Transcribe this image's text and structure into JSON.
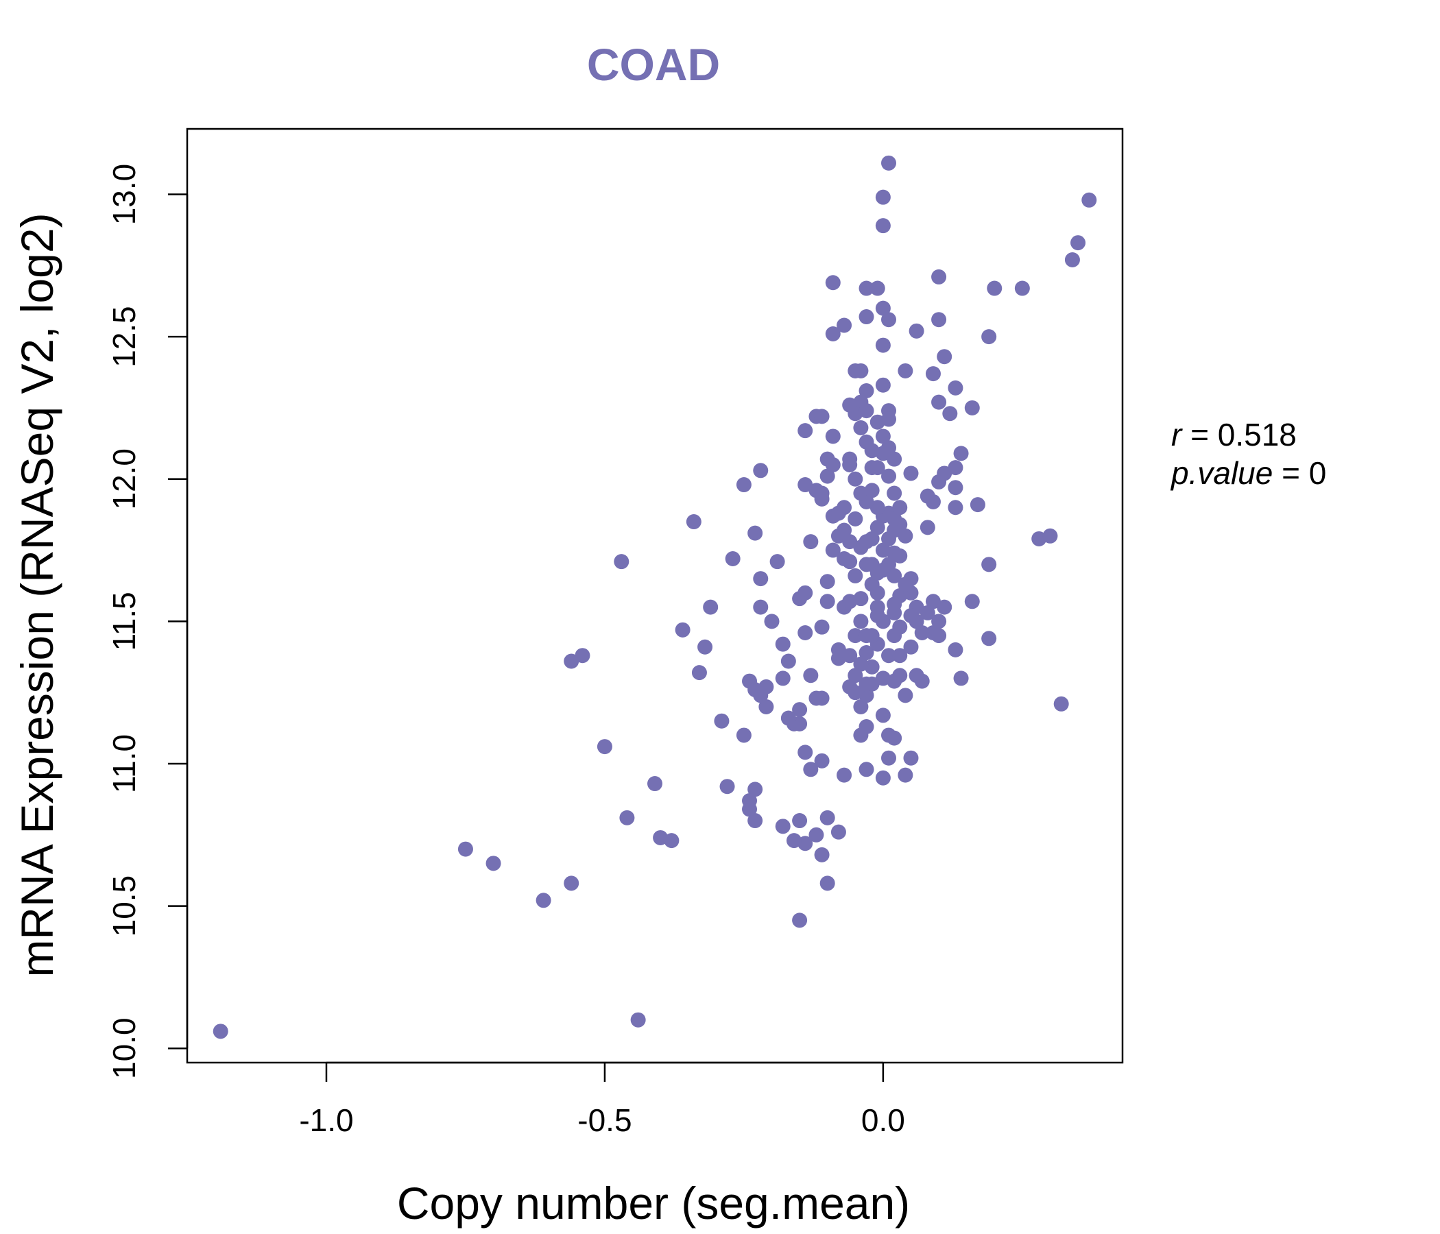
{
  "chart_data": {
    "type": "scatter",
    "title": "COAD",
    "xlabel": "Copy number (seg.mean)",
    "ylabel": "mRNA Expression (RNASeq V2, log2)",
    "xlim": [
      -1.25,
      0.43
    ],
    "ylim": [
      9.95,
      13.23
    ],
    "xticks": [
      -1.0,
      -0.5,
      0.0
    ],
    "xtick_labels": [
      "-1.0",
      "-0.5",
      "0.0"
    ],
    "yticks": [
      10.0,
      10.5,
      11.0,
      11.5,
      12.0,
      12.5,
      13.0
    ],
    "ytick_labels": [
      "10.0",
      "10.5",
      "11.0",
      "11.5",
      "12.0",
      "12.5",
      "13.0"
    ],
    "point_color": "#7570b3",
    "annotations": {
      "r_label": "r",
      "r_value": "0.518",
      "p_label": "p.value",
      "p_value": "0"
    },
    "points": [
      [
        -1.19,
        10.06
      ],
      [
        -0.44,
        10.1
      ],
      [
        -0.75,
        10.7
      ],
      [
        -0.7,
        10.65
      ],
      [
        -0.61,
        10.52
      ],
      [
        -0.56,
        10.58
      ],
      [
        -0.46,
        10.81
      ],
      [
        -0.41,
        10.93
      ],
      [
        -0.4,
        10.74
      ],
      [
        -0.38,
        10.73
      ],
      [
        -0.5,
        11.06
      ],
      [
        -0.56,
        11.36
      ],
      [
        -0.54,
        11.38
      ],
      [
        -0.47,
        11.71
      ],
      [
        -0.34,
        11.85
      ],
      [
        -0.36,
        11.47
      ],
      [
        -0.33,
        11.32
      ],
      [
        -0.32,
        11.41
      ],
      [
        -0.31,
        11.55
      ],
      [
        -0.29,
        11.15
      ],
      [
        -0.28,
        10.92
      ],
      [
        -0.27,
        11.72
      ],
      [
        -0.25,
        11.1
      ],
      [
        -0.25,
        11.98
      ],
      [
        -0.22,
        12.03
      ],
      [
        -0.23,
        11.81
      ],
      [
        -0.22,
        11.65
      ],
      [
        -0.22,
        11.55
      ],
      [
        -0.24,
        11.29
      ],
      [
        -0.23,
        11.26
      ],
      [
        -0.21,
        11.27
      ],
      [
        -0.22,
        11.24
      ],
      [
        -0.21,
        11.2
      ],
      [
        -0.2,
        11.5
      ],
      [
        -0.19,
        11.71
      ],
      [
        -0.18,
        11.42
      ],
      [
        -0.18,
        11.3
      ],
      [
        -0.17,
        11.36
      ],
      [
        -0.16,
        11.14
      ],
      [
        -0.15,
        11.19
      ],
      [
        -0.14,
        11.04
      ],
      [
        -0.15,
        11.58
      ],
      [
        -0.14,
        11.46
      ],
      [
        -0.14,
        11.6
      ],
      [
        -0.13,
        11.31
      ],
      [
        -0.13,
        11.78
      ],
      [
        -0.14,
        11.98
      ],
      [
        -0.14,
        12.17
      ],
      [
        -0.12,
        12.22
      ],
      [
        -0.11,
        12.22
      ],
      [
        -0.12,
        11.96
      ],
      [
        -0.11,
        11.93
      ],
      [
        -0.1,
        12.01
      ],
      [
        -0.1,
        12.07
      ],
      [
        -0.09,
        12.15
      ],
      [
        -0.09,
        11.87
      ],
      [
        -0.1,
        11.64
      ],
      [
        -0.1,
        11.57
      ],
      [
        -0.11,
        11.48
      ],
      [
        -0.08,
        11.4
      ],
      [
        -0.08,
        11.37
      ],
      [
        -0.07,
        11.55
      ],
      [
        -0.07,
        11.72
      ],
      [
        -0.07,
        11.82
      ],
      [
        -0.06,
        12.07
      ],
      [
        -0.09,
        12.51
      ],
      [
        -0.09,
        12.69
      ],
      [
        -0.07,
        12.54
      ],
      [
        -0.05,
        12.23
      ],
      [
        -0.05,
        12.38
      ],
      [
        -0.04,
        12.38
      ],
      [
        -0.04,
        12.27
      ],
      [
        -0.04,
        12.18
      ],
      [
        -0.03,
        12.31
      ],
      [
        -0.03,
        12.13
      ],
      [
        -0.02,
        12.04
      ],
      [
        -0.03,
        12.57
      ],
      [
        -0.03,
        12.67
      ],
      [
        -0.01,
        12.67
      ],
      [
        0.0,
        12.6
      ],
      [
        0.01,
        12.56
      ],
      [
        0.0,
        12.47
      ],
      [
        0.0,
        12.33
      ],
      [
        0.01,
        12.24
      ],
      [
        0.01,
        12.11
      ],
      [
        0.02,
        12.07
      ],
      [
        0.01,
        12.01
      ],
      [
        0.02,
        11.95
      ],
      [
        0.01,
        11.88
      ],
      [
        0.02,
        11.82
      ],
      [
        0.03,
        11.84
      ],
      [
        0.04,
        11.8
      ],
      [
        0.02,
        11.74
      ],
      [
        0.01,
        11.7
      ],
      [
        0.02,
        11.66
      ],
      [
        0.03,
        11.59
      ],
      [
        0.02,
        11.53
      ],
      [
        0.03,
        11.48
      ],
      [
        0.02,
        11.45
      ],
      [
        0.01,
        11.38
      ],
      [
        0.03,
        11.31
      ],
      [
        0.02,
        11.29
      ],
      [
        0.04,
        11.24
      ],
      [
        0.0,
        11.17
      ],
      [
        0.01,
        11.1
      ],
      [
        0.02,
        11.09
      ],
      [
        0.01,
        11.02
      ],
      [
        0.0,
        10.95
      ],
      [
        0.05,
        11.02
      ],
      [
        0.04,
        10.96
      ],
      [
        -0.03,
        10.98
      ],
      [
        -0.07,
        10.96
      ],
      [
        -0.03,
        11.13
      ],
      [
        -0.04,
        11.1
      ],
      [
        -0.04,
        11.2
      ],
      [
        -0.03,
        11.24
      ],
      [
        -0.06,
        11.27
      ],
      [
        -0.05,
        11.25
      ],
      [
        -0.02,
        11.28
      ],
      [
        -0.02,
        11.34
      ],
      [
        -0.03,
        11.39
      ],
      [
        -0.01,
        11.42
      ],
      [
        -0.02,
        11.45
      ],
      [
        0.0,
        11.5
      ],
      [
        -0.01,
        11.55
      ],
      [
        -0.01,
        11.6
      ],
      [
        -0.02,
        11.63
      ],
      [
        -0.01,
        11.67
      ],
      [
        -0.03,
        11.7
      ],
      [
        -0.04,
        11.76
      ],
      [
        -0.02,
        11.79
      ],
      [
        -0.01,
        11.83
      ],
      [
        0.0,
        11.87
      ],
      [
        -0.01,
        11.9
      ],
      [
        -0.03,
        11.92
      ],
      [
        -0.04,
        11.95
      ],
      [
        -0.05,
        12.0
      ],
      [
        -0.07,
        11.9
      ],
      [
        -0.08,
        11.8
      ],
      [
        -0.06,
        11.71
      ],
      [
        -0.09,
        11.75
      ],
      [
        0.05,
        11.65
      ],
      [
        0.05,
        11.6
      ],
      [
        0.06,
        11.55
      ],
      [
        0.05,
        11.52
      ],
      [
        0.06,
        11.5
      ],
      [
        0.05,
        11.41
      ],
      [
        0.09,
        11.46
      ],
      [
        0.1,
        11.5
      ],
      [
        0.1,
        11.45
      ],
      [
        0.13,
        11.4
      ],
      [
        0.14,
        11.3
      ],
      [
        0.09,
        11.57
      ],
      [
        0.11,
        11.55
      ],
      [
        0.16,
        11.57
      ],
      [
        0.08,
        11.83
      ],
      [
        0.09,
        11.92
      ],
      [
        0.1,
        11.99
      ],
      [
        0.11,
        12.02
      ],
      [
        0.13,
        12.04
      ],
      [
        0.13,
        11.97
      ],
      [
        0.13,
        11.9
      ],
      [
        0.09,
        12.37
      ],
      [
        0.1,
        12.27
      ],
      [
        0.12,
        12.23
      ],
      [
        0.13,
        12.32
      ],
      [
        0.11,
        12.43
      ],
      [
        0.1,
        12.56
      ],
      [
        0.1,
        12.71
      ],
      [
        0.06,
        12.52
      ],
      [
        0.04,
        12.38
      ],
      [
        0.05,
        12.02
      ],
      [
        0.08,
        11.94
      ],
      [
        0.14,
        12.09
      ],
      [
        0.16,
        12.25
      ],
      [
        0.17,
        11.91
      ],
      [
        0.19,
        12.5
      ],
      [
        0.2,
        12.67
      ],
      [
        0.25,
        12.67
      ],
      [
        0.19,
        11.7
      ],
      [
        0.19,
        11.44
      ],
      [
        0.28,
        11.79
      ],
      [
        0.3,
        11.8
      ],
      [
        0.32,
        11.21
      ],
      [
        0.34,
        12.77
      ],
      [
        0.35,
        12.83
      ],
      [
        0.37,
        12.98
      ],
      [
        0.0,
        12.89
      ],
      [
        0.0,
        12.99
      ],
      [
        0.01,
        13.11
      ],
      [
        -0.11,
        11.23
      ],
      [
        -0.11,
        11.01
      ],
      [
        -0.13,
        10.98
      ],
      [
        -0.12,
        10.75
      ],
      [
        -0.11,
        10.68
      ],
      [
        -0.1,
        10.58
      ],
      [
        -0.14,
        10.72
      ],
      [
        -0.16,
        10.73
      ],
      [
        -0.18,
        10.78
      ],
      [
        -0.15,
        10.8
      ],
      [
        -0.1,
        10.81
      ],
      [
        -0.08,
        10.76
      ],
      [
        -0.15,
        10.45
      ],
      [
        -0.24,
        10.84
      ],
      [
        -0.23,
        10.8
      ],
      [
        -0.23,
        10.91
      ],
      [
        -0.24,
        10.87
      ],
      [
        -0.12,
        11.23
      ],
      [
        -0.15,
        11.14
      ],
      [
        -0.17,
        11.16
      ],
      [
        0.07,
        11.29
      ],
      [
        0.06,
        11.31
      ],
      [
        0.03,
        11.38
      ],
      [
        0.08,
        11.53
      ],
      [
        0.07,
        11.46
      ],
      [
        -0.01,
        11.52
      ],
      [
        0.02,
        11.56
      ],
      [
        0.04,
        11.63
      ],
      [
        0.0,
        11.68
      ],
      [
        0.03,
        11.73
      ],
      [
        0.0,
        11.75
      ],
      [
        0.01,
        11.79
      ],
      [
        0.02,
        11.86
      ],
      [
        0.03,
        11.9
      ],
      [
        -0.02,
        11.96
      ],
      [
        -0.01,
        12.04
      ],
      [
        0.0,
        12.09
      ],
      [
        -0.02,
        12.1
      ],
      [
        0.0,
        12.15
      ],
      [
        -0.01,
        12.2
      ],
      [
        0.01,
        12.21
      ],
      [
        -0.03,
        12.24
      ],
      [
        -0.06,
        12.26
      ],
      [
        -0.06,
        12.05
      ],
      [
        -0.09,
        12.05
      ],
      [
        -0.11,
        11.95
      ],
      [
        -0.08,
        11.88
      ],
      [
        -0.05,
        11.86
      ],
      [
        -0.06,
        11.78
      ],
      [
        -0.03,
        11.78
      ],
      [
        -0.02,
        11.7
      ],
      [
        -0.05,
        11.66
      ],
      [
        -0.04,
        11.58
      ],
      [
        -0.06,
        11.57
      ],
      [
        -0.04,
        11.5
      ],
      [
        -0.05,
        11.45
      ],
      [
        -0.03,
        11.45
      ],
      [
        -0.06,
        11.38
      ],
      [
        -0.04,
        11.35
      ],
      [
        -0.05,
        11.31
      ],
      [
        -0.03,
        11.28
      ],
      [
        0.0,
        11.3
      ]
    ]
  }
}
